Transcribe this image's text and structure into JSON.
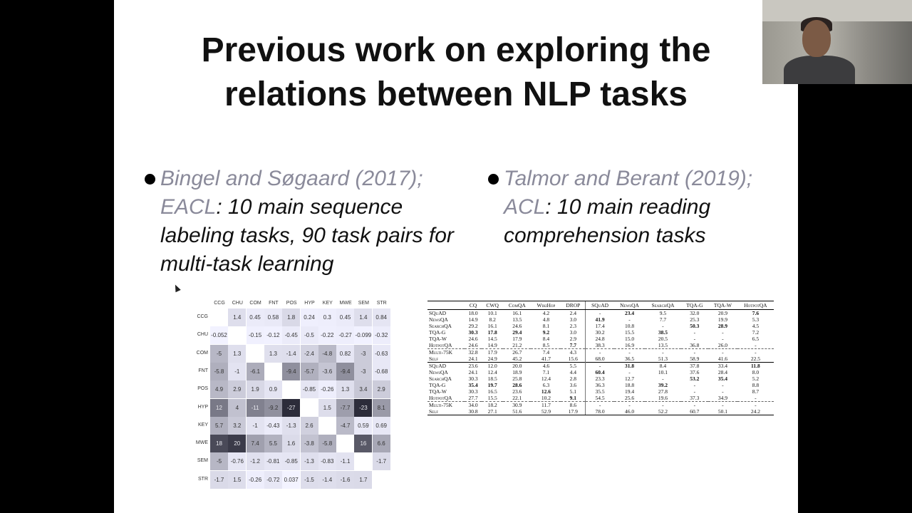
{
  "title": {
    "line1": "Previous work on exploring the",
    "line2": "relations between NLP tasks"
  },
  "bullets": [
    {
      "cite": "Bingel and Søgaard (2017); EACL",
      "text": ": 10 main sequence labeling tasks, 90 task pairs for multi-task learning"
    },
    {
      "cite": "Talmor and Berant (2019); ACL",
      "text": ": 10 main reading comprehension tasks"
    }
  ],
  "heatmap": {
    "labels": [
      "CCG",
      "CHU",
      "COM",
      "FNT",
      "POS",
      "HYP",
      "KEY",
      "MWE",
      "SEM",
      "STR"
    ],
    "values": [
      [
        "",
        "1.4",
        "0.45",
        "0.58",
        "1.8",
        "0.24",
        "0.3",
        "0.45",
        "1.4",
        "0.84"
      ],
      [
        "-0.052",
        "",
        "-0.15",
        "-0.12",
        "-0.45",
        "-0.5",
        "-0.22",
        "-0.27",
        "-0.099",
        "-0.32"
      ],
      [
        "-5",
        "1.3",
        "",
        "1.3",
        "-1.4",
        "-2.4",
        "-4.8",
        "0.82",
        "-3",
        "-0.63"
      ],
      [
        "-5.8",
        "-1",
        "-6.1",
        "",
        "-9.4",
        "-5.7",
        "-3.6",
        "-9.4",
        "-3",
        "-0.68"
      ],
      [
        "4.9",
        "2.9",
        "1.9",
        "0.9",
        "",
        "-0.85",
        "-0.26",
        "1.3",
        "3.4",
        "2.9"
      ],
      [
        "12",
        "4",
        "-11",
        "-9.2",
        "-27",
        "",
        "1.5",
        "-7.7",
        "-23",
        "8.1"
      ],
      [
        "5.7",
        "3.2",
        "-1",
        "-0.43",
        "-1.3",
        "2.6",
        "",
        "-4.7",
        "0.59",
        "0.69"
      ],
      [
        "18",
        "20",
        "7.4",
        "5.5",
        "1.6",
        "-3.8",
        "-5.8",
        "",
        "16",
        "6.6"
      ],
      [
        "-5",
        "-0.76",
        "-1.2",
        "-0.81",
        "-0.85",
        "-1.3",
        "-0.83",
        "-1.1",
        "",
        "-1.7"
      ],
      [
        "-1.7",
        "1.5",
        "-0.26",
        "-0.72",
        "0.037",
        "-1.5",
        "-1.4",
        "-1.6",
        "1.7",
        ""
      ]
    ]
  },
  "table": {
    "headers": [
      "",
      "CQ",
      "CWQ",
      "ComQA",
      "WikiHop",
      "DROP",
      "SQuAD",
      "NewsQA",
      "SearchQA",
      "TQA-G",
      "TQA-W",
      "HotpotQA"
    ],
    "block1": [
      [
        "SQuAD",
        "18.0",
        "10.1",
        "16.1",
        "4.2",
        "2.4",
        "-",
        "23.4",
        "9.5",
        "32.0",
        "20.9",
        "7.6"
      ],
      [
        "NewsQA",
        "14.9",
        "8.2",
        "13.5",
        "4.8",
        "3.0",
        "41.9",
        "-",
        "7.7",
        "25.3",
        "19.9",
        "5.3"
      ],
      [
        "SearchQA",
        "29.2",
        "16.1",
        "24.6",
        "8.1",
        "2.3",
        "17.4",
        "10.8",
        "-",
        "50.3",
        "28.9",
        "4.5"
      ],
      [
        "TQA-G",
        "30.3",
        "17.8",
        "29.4",
        "9.2",
        "3.0",
        "30.2",
        "15.5",
        "38.5",
        "-",
        "-",
        "7.2"
      ],
      [
        "TQA-W",
        "24.6",
        "14.5",
        "17.9",
        "8.4",
        "2.9",
        "24.8",
        "15.0",
        "20.5",
        "-",
        "-",
        "6.5"
      ],
      [
        "HotpotQA",
        "24.6",
        "14.9",
        "21.2",
        "8.5",
        "7.7",
        "38.3",
        "16.9",
        "13.5",
        "36.8",
        "26.0",
        "-"
      ],
      [
        "Multi-75K",
        "32.8",
        "17.9",
        "26.7",
        "7.4",
        "4.3",
        "-",
        "-",
        "-",
        "-",
        "-",
        "-"
      ],
      [
        "Self",
        "24.1",
        "24.9",
        "45.2",
        "41.7",
        "15.6",
        "68.0",
        "36.5",
        "51.3",
        "58.9",
        "41.6",
        "22.5"
      ]
    ],
    "block2": [
      [
        "SQuAD",
        "23.6",
        "12.0",
        "20.0",
        "4.6",
        "5.5",
        "-",
        "31.8",
        "8.4",
        "37.8",
        "33.4",
        "11.8"
      ],
      [
        "NewsQA",
        "24.1",
        "12.4",
        "18.9",
        "7.1",
        "4.4",
        "60.4",
        "-",
        "10.1",
        "37.6",
        "28.4",
        "8.0"
      ],
      [
        "SearchQA",
        "30.3",
        "18.5",
        "25.8",
        "12.4",
        "2.8",
        "23.3",
        "12.7",
        "-",
        "53.2",
        "35.4",
        "5.2"
      ],
      [
        "TQA-G",
        "35.4",
        "19.7",
        "28.6",
        "6.3",
        "3.6",
        "36.3",
        "18.8",
        "39.2",
        "-",
        "-",
        "8.8"
      ],
      [
        "TQA-W",
        "30.3",
        "16.5",
        "23.6",
        "12.6",
        "5.1",
        "35.5",
        "19.4",
        "27.8",
        "-",
        "-",
        "8.7"
      ],
      [
        "HotpotQA",
        "27.7",
        "15.5",
        "22.1",
        "10.2",
        "9.1",
        "54.5",
        "25.6",
        "19.6",
        "37.3",
        "34.9",
        "-"
      ],
      [
        "Multi-75K",
        "34.0",
        "18.2",
        "30.9",
        "11.7",
        "8.6",
        "-",
        "-",
        "-",
        "-",
        "-",
        "-"
      ],
      [
        "Self",
        "30.8",
        "27.1",
        "51.6",
        "52.9",
        "17.9",
        "78.0",
        "46.0",
        "52.2",
        "60.7",
        "50.1",
        "24.2"
      ]
    ],
    "bold1": [
      [
        0,
        7
      ],
      [
        0,
        11
      ],
      [
        1,
        6
      ],
      [
        2,
        9
      ],
      [
        2,
        10
      ],
      [
        3,
        1
      ],
      [
        3,
        2
      ],
      [
        3,
        3
      ],
      [
        3,
        4
      ],
      [
        3,
        8
      ],
      [
        5,
        5
      ]
    ],
    "bold2": [
      [
        0,
        7
      ],
      [
        0,
        11
      ],
      [
        1,
        6
      ],
      [
        2,
        9
      ],
      [
        2,
        10
      ],
      [
        3,
        1
      ],
      [
        3,
        2
      ],
      [
        3,
        3
      ],
      [
        3,
        8
      ],
      [
        4,
        4
      ],
      [
        5,
        5
      ]
    ]
  },
  "colors": {
    "background": "#000000",
    "slide": "#ffffff",
    "cite": "#8a8a9a",
    "heat_dark": "#2b2a40",
    "heat_mid": "#9a98ab"
  }
}
